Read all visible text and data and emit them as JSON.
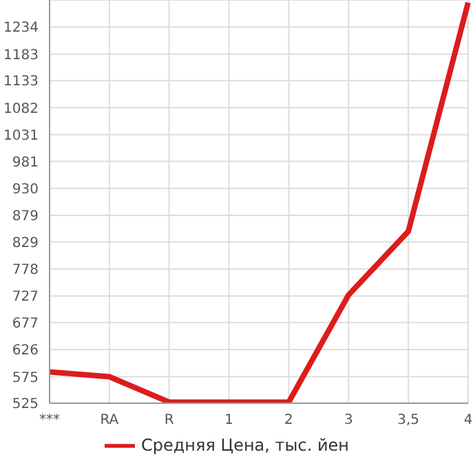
{
  "chart_data": {
    "type": "line",
    "categories": [
      "***",
      "RA",
      "R",
      "1",
      "2",
      "3",
      "3,5",
      "4"
    ],
    "series": [
      {
        "name": "Средняя Цена, тыс. йен",
        "color": "#dd1c1c",
        "values": [
          584,
          575,
          527,
          527,
          527,
          729,
          849,
          1280
        ]
      }
    ],
    "ylim": [
      525,
      1285
    ],
    "yticks": [
      525,
      575,
      626,
      677,
      727,
      778,
      829,
      879,
      930,
      981,
      1031,
      1082,
      1133,
      1183,
      1234
    ],
    "grid": true,
    "legend": "bottom",
    "marker": "none",
    "line_style": "solid"
  }
}
